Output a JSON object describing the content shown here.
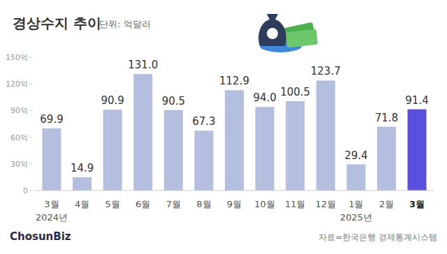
{
  "chart_data": {
    "type": "bar",
    "title": "경상수지 추이",
    "subtitle": "단위: 억달러",
    "categories": [
      "3월",
      "4월",
      "5월",
      "6월",
      "7월",
      "8월",
      "9월",
      "10월",
      "11월",
      "12월",
      "1월",
      "2월",
      "3월"
    ],
    "sublabels": [
      "2024년",
      null,
      null,
      null,
      null,
      null,
      null,
      null,
      null,
      null,
      "2025년",
      null,
      null
    ],
    "values": [
      69.9,
      14.9,
      90.9,
      131.0,
      90.5,
      67.3,
      112.9,
      94.0,
      100.5,
      123.7,
      29.4,
      71.8,
      91.4
    ],
    "value_labels": [
      "69.9",
      "14.9",
      "90.9",
      "131.0",
      "90.5",
      "67.3",
      "112.9",
      "94.0",
      "100.5",
      "123.7",
      "29.4",
      "71.8",
      "91.4"
    ],
    "colors": [
      "#b4bedf",
      "#b4bedf",
      "#b4bedf",
      "#b4bedf",
      "#b4bedf",
      "#b4bedf",
      "#b4bedf",
      "#b4bedf",
      "#b4bedf",
      "#b4bedf",
      "#b4bedf",
      "#b4bedf",
      "#5b4fe0"
    ],
    "ylim": [
      0,
      150
    ],
    "yticks": [
      0,
      {
        "value": 30,
        "label": "30억"
      },
      {
        "value": 60,
        "label": "60억"
      },
      {
        "value": 90,
        "label": "90억"
      },
      {
        "value": 120,
        "label": "120억"
      },
      {
        "value": 150,
        "label": "150억"
      }
    ],
    "grid": false,
    "data_labels": true,
    "source": "자료=한국은행 경제통계시스템",
    "logo": "ChosunBiz"
  }
}
